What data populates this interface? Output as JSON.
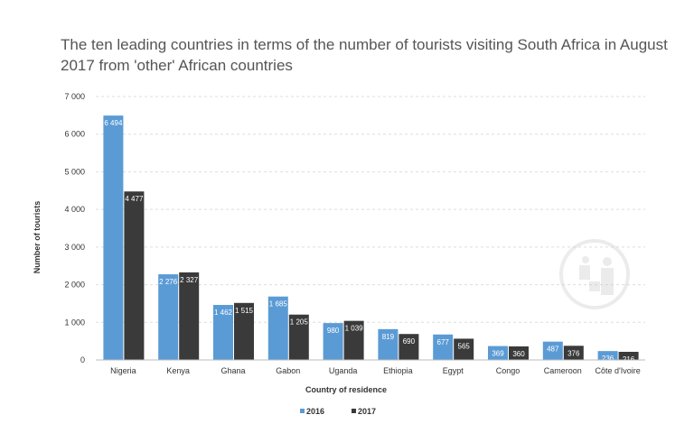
{
  "chart_data": {
    "type": "bar",
    "title": "The ten leading countries in terms of the number of tourists visiting South Africa in August 2017 from 'other' African countries",
    "xlabel": "Country of residence",
    "ylabel": "Number of tourists",
    "categories": [
      "Nigeria",
      "Kenya",
      "Ghana",
      "Gabon",
      "Uganda",
      "Ethiopia",
      "Egypt",
      "Congo",
      "Cameroon",
      "Côte d'Ivoire"
    ],
    "series": [
      {
        "name": "2016",
        "color": "#5b9bd5",
        "values": [
          6494,
          2276,
          1462,
          1685,
          980,
          819,
          677,
          369,
          487,
          236
        ],
        "labels": [
          "6 494",
          "2 276",
          "1 462",
          "1 685",
          "980",
          "819",
          "677",
          "369",
          "487",
          "236"
        ]
      },
      {
        "name": "2017",
        "color": "#3a3a3a",
        "values": [
          4477,
          2327,
          1515,
          1205,
          1039,
          690,
          565,
          360,
          376,
          216
        ],
        "labels": [
          "4 477",
          "2 327",
          "1 515",
          "1 205",
          "1 039",
          "690",
          "565",
          "360",
          "376",
          "216"
        ]
      }
    ],
    "ylim": [
      0,
      7000
    ],
    "yticks": [
      0,
      1000,
      2000,
      3000,
      4000,
      5000,
      6000,
      7000
    ],
    "ytick_labels": [
      "0",
      "1 000",
      "2 000",
      "3 000",
      "4 000",
      "5 000",
      "6 000",
      "7 000"
    ],
    "grid": true,
    "legend_position": "bottom-center"
  }
}
